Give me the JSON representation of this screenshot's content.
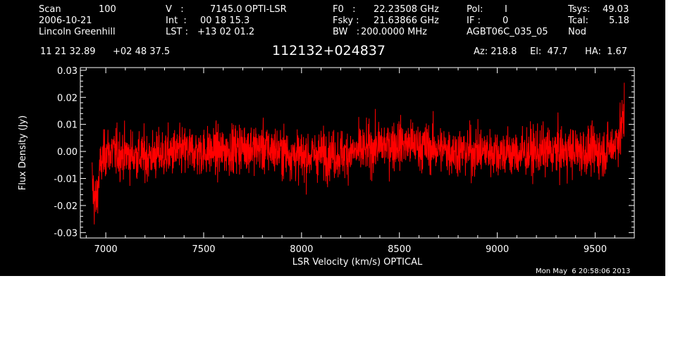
{
  "header": {
    "scan_label": "Scan",
    "scan_value": "100",
    "date": "2006-10-21",
    "observer": "Lincoln Greenhill",
    "v_label": "V   :",
    "v_value": "7145.0 OPTI-LSR",
    "int_label": "Int  :",
    "int_value": "00 18 15.3",
    "lst_label": "LST :",
    "lst_value": "+13 02 01.2",
    "f0_label": "F0   :",
    "f0_value": "22.23508 GHz",
    "fsky_label": "Fsky :",
    "fsky_value": "21.63866 GHz",
    "bw_label": "BW   :",
    "bw_value": "200.0000 MHz",
    "pol_label": "Pol:",
    "pol_value": "I",
    "if_label": "IF :",
    "if_value": "0",
    "project": "AGBT06C_035_05",
    "tsys_label": "Tsys:",
    "tsys_value": "49.03",
    "tcal_label": "Tcal:",
    "tcal_value": "5.18",
    "mode": "Nod",
    "ra": "11 21 32.89",
    "dec": "+02 48 37.5",
    "source": "112132+024837",
    "az": "Az: 218.8",
    "el": "El:  47.7",
    "ha": "HA:  1.67",
    "timestamp": "Mon May  6 20:58:06 2013"
  },
  "chart_data": {
    "type": "line",
    "xlabel": "LSR Velocity (km/s) OPTICAL",
    "ylabel": "Flux Density (Jy)",
    "xlim": [
      6870,
      9700
    ],
    "ylim": [
      -0.032,
      0.031
    ],
    "x_ticks": [
      7000,
      7500,
      8000,
      8500,
      9000,
      9500
    ],
    "x_tick_labels": [
      "7000",
      "7500",
      "8000",
      "8500",
      "9000",
      "9500"
    ],
    "y_ticks": [
      -0.03,
      -0.02,
      -0.01,
      0.0,
      0.01,
      0.02,
      0.03
    ],
    "y_tick_labels": [
      "-0.03",
      "-0.02",
      "-0.01",
      "0.00",
      "0.01",
      "0.02",
      "0.03"
    ],
    "series_color": "#ff0000",
    "series": [
      {
        "x": [
          6930,
          6950,
          6970,
          7000,
          7100,
          7200,
          7300,
          7400,
          7500,
          7600,
          7700,
          7800,
          7900,
          8000,
          8100,
          8200,
          8300,
          8400,
          8500,
          8600,
          8700,
          8800,
          8900,
          9000,
          9100,
          9200,
          9300,
          9400,
          9500,
          9550,
          9600,
          9630,
          9650
        ],
        "y": [
          -0.012,
          -0.02,
          -0.006,
          0.0,
          -0.001,
          -0.002,
          -0.001,
          0.0,
          0.0,
          0.0,
          0.002,
          0.001,
          0.0,
          -0.002,
          -0.001,
          -0.001,
          0.0,
          0.002,
          0.003,
          0.002,
          0.001,
          0.0,
          0.0,
          0.0,
          -0.001,
          0.0,
          0.0,
          0.0,
          0.0,
          0.0,
          0.003,
          0.008,
          0.012
        ],
        "noise_rms": [
          0.006,
          0.005,
          0.004,
          0.0045,
          0.0045,
          0.0045,
          0.0045,
          0.0045,
          0.0045,
          0.0045,
          0.0045,
          0.0045,
          0.0045,
          0.0045,
          0.0045,
          0.0045,
          0.0045,
          0.0045,
          0.0045,
          0.0045,
          0.0045,
          0.0045,
          0.0045,
          0.0045,
          0.0045,
          0.0045,
          0.0045,
          0.0045,
          0.0045,
          0.0045,
          0.0045,
          0.005,
          0.006
        ]
      }
    ]
  }
}
